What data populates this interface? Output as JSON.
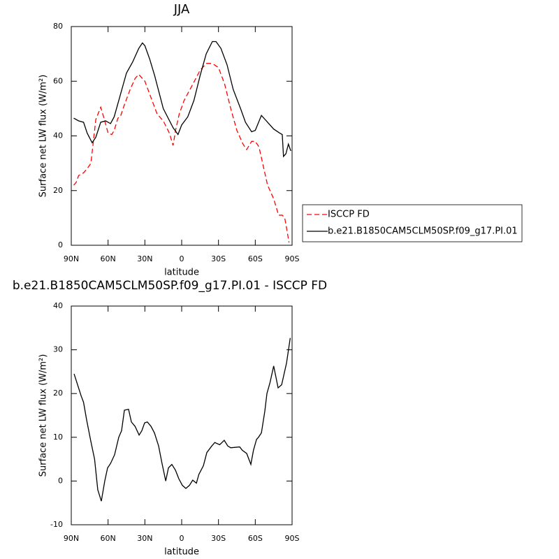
{
  "chart_data": [
    {
      "type": "line",
      "title": "JJA",
      "ylabel": "Surface net LW flux (W/m²)",
      "xlabel": "latitude",
      "xlim": [
        90,
        -90
      ],
      "xticks": [
        {
          "value": 90,
          "label": "90N"
        },
        {
          "value": 60,
          "label": "60N"
        },
        {
          "value": 30,
          "label": "30N"
        },
        0,
        {
          "value": -30,
          "label": "30S"
        },
        {
          "value": -60,
          "label": "60S"
        },
        {
          "value": -90,
          "label": "90S"
        }
      ],
      "ylim": [
        0,
        80
      ],
      "yticks": [
        0,
        20,
        40,
        60,
        80
      ],
      "series": [
        {
          "name": "ISCCP FD",
          "color": "#ff0000",
          "dashed": true,
          "x": [
            88,
            86,
            84,
            80,
            77,
            74,
            70,
            66,
            63,
            60,
            57,
            55,
            52,
            50,
            47,
            42,
            38,
            35,
            30,
            25,
            20,
            15,
            10,
            7,
            5,
            2,
            -2,
            -8,
            -15,
            -20,
            -25,
            -30,
            -35,
            -40,
            -45,
            -50,
            -53,
            -57,
            -60,
            -63,
            -67,
            -70,
            -75,
            -79,
            -82,
            -84,
            -86,
            -87.5
          ],
          "values": [
            22,
            23,
            25.5,
            26.5,
            28,
            30,
            46,
            50.5,
            46,
            41,
            40.5,
            42,
            46.5,
            47,
            51,
            57,
            61,
            62.5,
            60,
            54,
            48,
            45.5,
            41,
            36.5,
            42,
            48,
            53,
            58,
            64,
            66.5,
            66.5,
            65,
            59,
            50,
            42,
            37,
            35,
            38,
            38,
            36,
            28,
            22,
            17,
            11,
            11,
            10,
            5,
            1
          ]
        },
        {
          "name": "b.e21.B1850CAM5CLM50SP.f09_g17.PI.01",
          "color": "#000000",
          "dashed": false,
          "x": [
            88,
            84,
            80,
            77,
            73,
            70,
            66,
            62,
            58,
            55,
            50,
            45,
            40,
            35,
            32,
            30,
            26,
            22,
            15,
            7,
            3,
            0,
            -5,
            -10,
            -15,
            -20,
            -25,
            -28,
            -32,
            -37,
            -42,
            -48,
            -52,
            -57,
            -60,
            -65,
            -70,
            -75,
            -80,
            -82,
            -83,
            -85,
            -87,
            -89
          ],
          "values": [
            46.5,
            45.5,
            45,
            41,
            37.5,
            39.5,
            45,
            45.5,
            44.5,
            47,
            55,
            63,
            67,
            72,
            74,
            73,
            68,
            62,
            50,
            43,
            40.5,
            44,
            47,
            53,
            62,
            70,
            74.5,
            74.5,
            72,
            66,
            57,
            50,
            45,
            41.5,
            42,
            47.5,
            45,
            42.5,
            41,
            40.5,
            32.5,
            33.5,
            37,
            34.5
          ]
        }
      ]
    },
    {
      "type": "line",
      "title": "b.e21.B1850CAM5CLM50SP.f09_g17.PI.01 - ISCCP FD",
      "ylabel": "Surface net LW flux (W/m²)",
      "xlabel": "latitude",
      "xlim": [
        90,
        -90
      ],
      "xticks": [
        {
          "value": 90,
          "label": "90N"
        },
        {
          "value": 60,
          "label": "60N"
        },
        {
          "value": 30,
          "label": "30N"
        },
        0,
        {
          "value": -30,
          "label": "30S"
        },
        {
          "value": -60,
          "label": "60S"
        },
        {
          "value": -90,
          "label": "90S"
        }
      ],
      "ylim": [
        -10,
        40
      ],
      "yticks": [
        -10,
        0,
        10,
        20,
        30,
        40
      ],
      "series": [
        {
          "color": "#000000",
          "dashed": false,
          "x": [
            87.7,
            82,
            80,
            77.5,
            74,
            71,
            68.4,
            65.5,
            62.7,
            60.4,
            58,
            54.7,
            51.3,
            49,
            46.7,
            43.3,
            41,
            38,
            34.7,
            32.5,
            30.2,
            28,
            25,
            22.2,
            18.8,
            16,
            13,
            10.8,
            8,
            5.1,
            2.3,
            -0.6,
            -3.4,
            -6.3,
            -9,
            -12,
            -14,
            -17.7,
            -20.5,
            -24.5,
            -27,
            -31,
            -34.7,
            -37.6,
            -40,
            -47.3,
            -49.5,
            -53,
            -56.4,
            -58.5,
            -61,
            -62.6,
            -65,
            -67.8,
            -69.5,
            -72,
            -75,
            -78.6,
            -81.5,
            -85.5,
            -88.5
          ],
          "values": [
            24.5,
            19.5,
            18,
            14,
            9,
            5,
            -2,
            -4.6,
            0,
            3,
            4,
            6,
            10,
            11.5,
            16.2,
            16.4,
            13.5,
            12.5,
            10.5,
            11.5,
            13.3,
            13.5,
            12.5,
            11,
            8,
            4,
            0,
            3,
            3.8,
            2.5,
            0.5,
            -1,
            -1.7,
            -1,
            0.2,
            -0.5,
            1.5,
            3.5,
            6.5,
            8,
            8.8,
            8.3,
            9.3,
            8,
            7.6,
            7.8,
            7,
            6.3,
            3.8,
            7,
            9.5,
            10,
            11,
            16,
            20,
            22.5,
            26.3,
            21.3,
            22,
            27,
            32.7
          ]
        }
      ]
    }
  ]
}
